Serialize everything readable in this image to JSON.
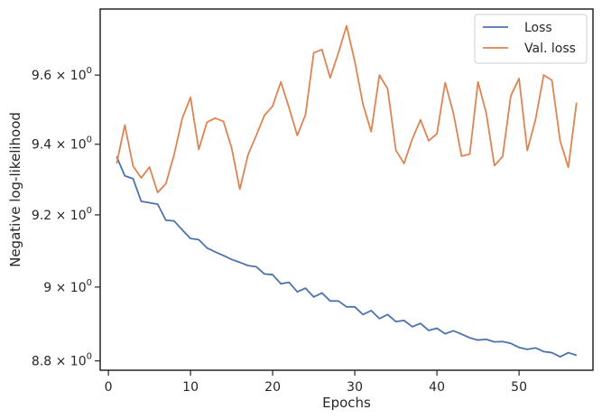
{
  "chart_data": {
    "type": "line",
    "title": "",
    "xlabel": "Epochs",
    "ylabel": "Negative log-likelihood",
    "yscale": "log",
    "xlim": [
      -1,
      59
    ],
    "ylim": [
      8.775,
      9.795
    ],
    "xticks": [
      0,
      10,
      20,
      30,
      40,
      50
    ],
    "xtick_labels": [
      "0",
      "10",
      "20",
      "30",
      "40",
      "50"
    ],
    "yticks": [
      8.8,
      9.0,
      9.2,
      9.4,
      9.6
    ],
    "ytick_labels": [
      {
        "mantissa": "8.8",
        "base": "10",
        "exp": "0"
      },
      {
        "mantissa": "9",
        "base": "10",
        "exp": "0"
      },
      {
        "mantissa": "9.2",
        "base": "10",
        "exp": "0"
      },
      {
        "mantissa": "9.4",
        "base": "10",
        "exp": "0"
      },
      {
        "mantissa": "9.6",
        "base": "10",
        "exp": "0"
      }
    ],
    "grid": false,
    "legend_position": "top-right",
    "x": [
      1,
      2,
      3,
      4,
      5,
      6,
      7,
      8,
      9,
      10,
      11,
      12,
      13,
      14,
      15,
      16,
      17,
      18,
      19,
      20,
      21,
      22,
      23,
      24,
      25,
      26,
      27,
      28,
      29,
      30,
      31,
      32,
      33,
      34,
      35,
      36,
      37,
      38,
      39,
      40,
      41,
      42,
      43,
      44,
      45,
      46,
      47,
      48,
      49,
      50,
      51,
      52,
      53,
      54,
      55,
      56,
      57
    ],
    "series": [
      {
        "name": "Loss",
        "color": "#4c72b0",
        "values": [
          9.365,
          9.31,
          9.302,
          9.238,
          9.234,
          9.23,
          9.185,
          9.183,
          9.158,
          9.134,
          9.131,
          9.108,
          9.097,
          9.087,
          9.076,
          9.068,
          9.059,
          9.056,
          9.036,
          9.034,
          9.009,
          9.013,
          8.987,
          8.997,
          8.973,
          8.984,
          8.962,
          8.962,
          8.946,
          8.946,
          8.925,
          8.936,
          8.914,
          8.925,
          8.906,
          8.909,
          8.892,
          8.901,
          8.882,
          8.888,
          8.873,
          8.881,
          8.872,
          8.862,
          8.856,
          8.858,
          8.851,
          8.852,
          8.847,
          8.836,
          8.831,
          8.835,
          8.825,
          8.822,
          8.811,
          8.822,
          8.815
        ]
      },
      {
        "name": "Val. loss",
        "color": "#dd8452",
        "values": [
          9.345,
          9.455,
          9.338,
          9.304,
          9.335,
          9.263,
          9.288,
          9.37,
          9.475,
          9.535,
          9.385,
          9.463,
          9.475,
          9.466,
          9.39,
          9.272,
          9.37,
          9.425,
          9.483,
          9.51,
          9.58,
          9.505,
          9.425,
          9.485,
          9.665,
          9.675,
          9.592,
          9.665,
          9.745,
          9.64,
          9.515,
          9.436,
          9.6,
          9.56,
          9.383,
          9.345,
          9.415,
          9.47,
          9.41,
          9.43,
          9.578,
          9.49,
          9.366,
          9.372,
          9.58,
          9.49,
          9.339,
          9.365,
          9.54,
          9.59,
          9.382,
          9.47,
          9.6,
          9.585,
          9.41,
          9.334,
          9.52
        ]
      }
    ]
  }
}
